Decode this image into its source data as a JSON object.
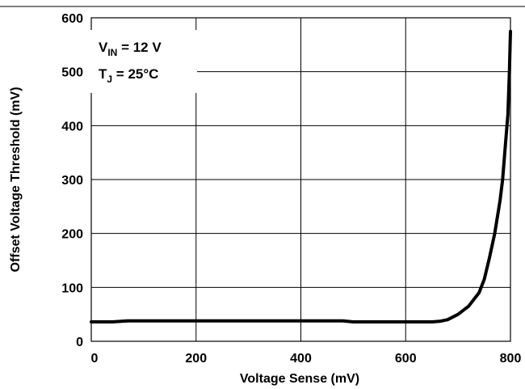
{
  "chart_data": {
    "type": "line",
    "title": "",
    "xlabel": "Voltage Sense (mV)",
    "ylabel": "Offset Voltage Threshold (mV)",
    "xlim": [
      0,
      800
    ],
    "ylim": [
      0,
      600
    ],
    "xticks": [
      "0",
      "200",
      "400",
      "600",
      "800"
    ],
    "yticks": [
      "0",
      "100",
      "200",
      "300",
      "400",
      "500",
      "600"
    ],
    "grid": true,
    "annotations": [
      {
        "main": "V",
        "sub": "IN",
        "rest": " = 12 V"
      },
      {
        "main": "T",
        "sub": "J",
        "rest": " = 25°C"
      }
    ],
    "series": [
      {
        "x": [
          0,
          40,
          70,
          100,
          200,
          300,
          400,
          480,
          500,
          550,
          600,
          650,
          665,
          680,
          700,
          720,
          740,
          750,
          760,
          770,
          780,
          785,
          790,
          795,
          798,
          800
        ],
        "y": [
          36,
          36,
          38,
          38,
          38,
          38,
          38,
          38,
          36,
          36,
          36,
          36,
          37,
          40,
          50,
          65,
          90,
          115,
          155,
          200,
          260,
          300,
          360,
          420,
          500,
          575
        ]
      }
    ]
  }
}
